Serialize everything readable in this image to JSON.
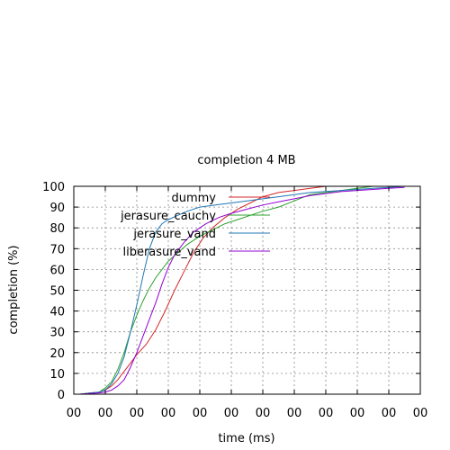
{
  "chart_data": {
    "type": "line",
    "title": "completion 4 MB",
    "xlabel": "time (ms)",
    "ylabel": "completion (%)",
    "xlim": [
      0,
      11
    ],
    "ylim": [
      0,
      100
    ],
    "x_tick_labels": [
      "00",
      "00",
      "00",
      "00",
      "00",
      "00",
      "00",
      "00",
      "00",
      "00",
      "00",
      "00"
    ],
    "y_ticks": [
      0,
      10,
      20,
      30,
      40,
      50,
      60,
      70,
      80,
      90,
      100
    ],
    "grid": true,
    "legend_position": "top-left",
    "series": [
      {
        "name": "dummy",
        "color": "#d62728",
        "points": [
          [
            0.2,
            0
          ],
          [
            0.5,
            0.5
          ],
          [
            0.8,
            1
          ],
          [
            1.0,
            2
          ],
          [
            1.2,
            4
          ],
          [
            1.4,
            7
          ],
          [
            1.6,
            11
          ],
          [
            1.8,
            15
          ],
          [
            2.0,
            19
          ],
          [
            2.3,
            24
          ],
          [
            2.6,
            31
          ],
          [
            2.9,
            40
          ],
          [
            3.2,
            50
          ],
          [
            3.5,
            59
          ],
          [
            3.8,
            68
          ],
          [
            4.1,
            75
          ],
          [
            4.4,
            80
          ],
          [
            4.8,
            85
          ],
          [
            5.2,
            89
          ],
          [
            5.6,
            92
          ],
          [
            6.0,
            95
          ],
          [
            6.5,
            97
          ],
          [
            7.0,
            98
          ],
          [
            7.5,
            99
          ],
          [
            8.0,
            100
          ]
        ]
      },
      {
        "name": "jerasure_cauchy",
        "color": "#2ca02c",
        "points": [
          [
            0.2,
            0
          ],
          [
            0.5,
            0.5
          ],
          [
            0.8,
            1
          ],
          [
            1.0,
            3
          ],
          [
            1.2,
            6
          ],
          [
            1.4,
            12
          ],
          [
            1.6,
            20
          ],
          [
            1.8,
            30
          ],
          [
            2.0,
            38
          ],
          [
            2.2,
            45
          ],
          [
            2.4,
            51
          ],
          [
            2.6,
            56
          ],
          [
            2.8,
            60
          ],
          [
            3.0,
            64
          ],
          [
            3.3,
            68
          ],
          [
            3.6,
            72
          ],
          [
            4.0,
            76
          ],
          [
            4.4,
            79
          ],
          [
            4.8,
            82
          ],
          [
            5.2,
            84
          ],
          [
            5.6,
            86
          ],
          [
            6.0,
            88
          ],
          [
            6.5,
            90
          ],
          [
            7.0,
            93
          ],
          [
            7.5,
            96
          ],
          [
            8.0,
            97
          ],
          [
            8.5,
            98
          ],
          [
            9.0,
            99
          ],
          [
            9.5,
            100
          ]
        ]
      },
      {
        "name": "jerasure_vand",
        "color": "#1f77b4",
        "points": [
          [
            0.2,
            0
          ],
          [
            0.5,
            0.5
          ],
          [
            0.8,
            1
          ],
          [
            1.0,
            2
          ],
          [
            1.2,
            5
          ],
          [
            1.4,
            10
          ],
          [
            1.6,
            18
          ],
          [
            1.8,
            30
          ],
          [
            2.0,
            43
          ],
          [
            2.2,
            57
          ],
          [
            2.4,
            70
          ],
          [
            2.6,
            78
          ],
          [
            2.8,
            82
          ],
          [
            3.0,
            84
          ],
          [
            3.3,
            86
          ],
          [
            3.6,
            88
          ],
          [
            4.0,
            90
          ],
          [
            4.5,
            91
          ],
          [
            5.0,
            92
          ],
          [
            5.5,
            93
          ],
          [
            6.0,
            94
          ],
          [
            6.5,
            95
          ],
          [
            7.0,
            96
          ],
          [
            7.5,
            97
          ],
          [
            8.0,
            97.5
          ],
          [
            8.5,
            98
          ],
          [
            9.0,
            98.5
          ],
          [
            9.5,
            99
          ],
          [
            10.0,
            99.5
          ],
          [
            10.5,
            100
          ]
        ]
      },
      {
        "name": "liberasure_vand",
        "color": "#9400d3",
        "points": [
          [
            0.2,
            0
          ],
          [
            0.5,
            0.3
          ],
          [
            0.8,
            0.6
          ],
          [
            1.0,
            1
          ],
          [
            1.2,
            2
          ],
          [
            1.4,
            4
          ],
          [
            1.6,
            7
          ],
          [
            1.8,
            13
          ],
          [
            2.0,
            20
          ],
          [
            2.2,
            28
          ],
          [
            2.4,
            36
          ],
          [
            2.6,
            44
          ],
          [
            2.8,
            53
          ],
          [
            3.0,
            61
          ],
          [
            3.2,
            67
          ],
          [
            3.5,
            73
          ],
          [
            3.8,
            78
          ],
          [
            4.2,
            82
          ],
          [
            4.6,
            85
          ],
          [
            5.0,
            87
          ],
          [
            5.5,
            89
          ],
          [
            6.0,
            91
          ],
          [
            6.5,
            92.5
          ],
          [
            7.0,
            94
          ],
          [
            7.5,
            95.5
          ],
          [
            8.0,
            96.5
          ],
          [
            8.5,
            97.5
          ],
          [
            9.0,
            98
          ],
          [
            9.5,
            98.5
          ],
          [
            10.0,
            99
          ],
          [
            10.5,
            99.5
          ]
        ]
      }
    ]
  }
}
